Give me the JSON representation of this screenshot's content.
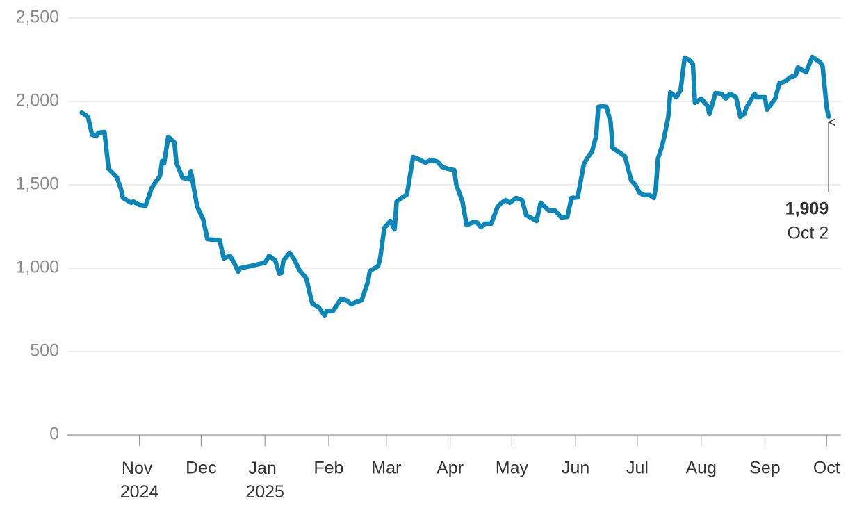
{
  "chart_data": {
    "type": "line",
    "x": [
      "2024-10-04",
      "2024-10-07",
      "2024-10-09",
      "2024-10-11",
      "2024-10-12",
      "2024-10-15",
      "2024-10-17",
      "2024-10-21",
      "2024-10-23",
      "2024-10-24",
      "2024-10-28",
      "2024-10-29",
      "2024-11-01",
      "2024-11-04",
      "2024-11-07",
      "2024-11-11",
      "2024-11-12",
      "2024-11-13",
      "2024-11-15",
      "2024-11-18",
      "2024-11-19",
      "2024-11-22",
      "2024-11-25",
      "2024-11-26",
      "2024-11-29",
      "2024-12-02",
      "2024-12-04",
      "2024-12-07",
      "2024-12-10",
      "2024-12-12",
      "2024-12-15",
      "2024-12-17",
      "2024-12-19",
      "2024-12-20",
      "2024-12-25",
      "2025-01-01",
      "2025-01-03",
      "2025-01-06",
      "2025-01-08",
      "2025-01-09",
      "2025-01-10",
      "2025-01-13",
      "2025-01-15",
      "2025-01-18",
      "2025-01-21",
      "2025-01-24",
      "2025-01-27",
      "2025-01-30",
      "2025-01-31",
      "2025-02-03",
      "2025-02-07",
      "2025-02-10",
      "2025-02-12",
      "2025-02-14",
      "2025-02-17",
      "2025-02-20",
      "2025-02-21",
      "2025-02-25",
      "2025-02-26",
      "2025-02-28",
      "2025-03-03",
      "2025-03-05",
      "2025-03-06",
      "2025-03-11",
      "2025-03-14",
      "2025-03-16",
      "2025-03-20",
      "2025-03-23",
      "2025-03-26",
      "2025-03-28",
      "2025-03-31",
      "2025-04-03",
      "2025-04-04",
      "2025-04-07",
      "2025-04-09",
      "2025-04-12",
      "2025-04-14",
      "2025-04-16",
      "2025-04-18",
      "2025-04-21",
      "2025-04-24",
      "2025-04-26",
      "2025-04-28",
      "2025-04-30",
      "2025-05-03",
      "2025-05-06",
      "2025-05-08",
      "2025-05-10",
      "2025-05-13",
      "2025-05-15",
      "2025-05-19",
      "2025-05-22",
      "2025-05-25",
      "2025-05-28",
      "2025-05-30",
      "2025-06-02",
      "2025-06-03",
      "2025-06-05",
      "2025-06-07",
      "2025-06-09",
      "2025-06-11",
      "2025-06-12",
      "2025-06-14",
      "2025-06-16",
      "2025-06-18",
      "2025-06-19",
      "2025-06-23",
      "2025-06-25",
      "2025-06-28",
      "2025-06-30",
      "2025-07-02",
      "2025-07-04",
      "2025-07-07",
      "2025-07-09",
      "2025-07-10",
      "2025-07-11",
      "2025-07-13",
      "2025-07-14",
      "2025-07-16",
      "2025-07-17",
      "2025-07-20",
      "2025-07-22",
      "2025-07-24",
      "2025-07-26",
      "2025-07-28",
      "2025-07-29",
      "2025-08-01",
      "2025-08-04",
      "2025-08-05",
      "2025-08-08",
      "2025-08-11",
      "2025-08-13",
      "2025-08-15",
      "2025-08-18",
      "2025-08-20",
      "2025-08-22",
      "2025-08-23",
      "2025-08-27",
      "2025-08-28",
      "2025-08-30",
      "2025-09-01",
      "2025-09-02",
      "2025-09-06",
      "2025-09-08",
      "2025-09-11",
      "2025-09-13",
      "2025-09-16",
      "2025-09-17",
      "2025-09-21",
      "2025-09-24",
      "2025-09-28",
      "2025-09-29",
      "2025-10-01",
      "2025-10-02"
    ],
    "series": [
      {
        "color": "#0b86b8",
        "values": [
          1933,
          1908,
          1800,
          1792,
          1812,
          1817,
          1596,
          1546,
          1475,
          1421,
          1392,
          1400,
          1379,
          1375,
          1483,
          1554,
          1642,
          1629,
          1788,
          1754,
          1629,
          1542,
          1533,
          1583,
          1371,
          1292,
          1175,
          1171,
          1167,
          1058,
          1075,
          1033,
          979,
          1000,
          1013,
          1033,
          1075,
          1046,
          967,
          971,
          1046,
          1092,
          1058,
          983,
          942,
          788,
          767,
          717,
          742,
          742,
          817,
          804,
          783,
          796,
          808,
          917,
          983,
          1013,
          1058,
          1242,
          1283,
          1233,
          1400,
          1442,
          1667,
          1658,
          1633,
          1650,
          1638,
          1608,
          1596,
          1588,
          1500,
          1400,
          1258,
          1275,
          1275,
          1246,
          1267,
          1267,
          1367,
          1392,
          1408,
          1392,
          1421,
          1408,
          1317,
          1304,
          1283,
          1392,
          1346,
          1346,
          1304,
          1308,
          1421,
          1425,
          1492,
          1625,
          1667,
          1700,
          1792,
          1967,
          1971,
          1967,
          1875,
          1721,
          1688,
          1671,
          1525,
          1500,
          1454,
          1438,
          1438,
          1421,
          1483,
          1658,
          1733,
          1783,
          1908,
          2054,
          2025,
          2067,
          2263,
          2250,
          2225,
          1992,
          2017,
          1975,
          1925,
          2050,
          2046,
          2017,
          2046,
          2025,
          1908,
          1925,
          1963,
          2046,
          2025,
          2025,
          2025,
          1950,
          2017,
          2108,
          2121,
          2142,
          2158,
          2204,
          2175,
          2267,
          2233,
          2213,
          1963,
          1909
        ]
      }
    ],
    "xlim": [
      "2024-09-27",
      "2025-10-08"
    ],
    "xticks": [
      {
        "value": "2024-11-01",
        "label": "Nov 2024"
      },
      {
        "value": "2024-12-01",
        "label": "Dec"
      },
      {
        "value": "2025-01-01",
        "label": "Jan 2025"
      },
      {
        "value": "2025-02-01",
        "label": "Feb"
      },
      {
        "value": "2025-03-01",
        "label": "Mar"
      },
      {
        "value": "2025-04-01",
        "label": "Apr"
      },
      {
        "value": "2025-05-01",
        "label": "May"
      },
      {
        "value": "2025-06-01",
        "label": "Jun"
      },
      {
        "value": "2025-07-01",
        "label": "Jul"
      },
      {
        "value": "2025-08-01",
        "label": "Aug"
      },
      {
        "value": "2025-09-01",
        "label": "Sep"
      },
      {
        "value": "2025-10-01",
        "label": "Oct"
      }
    ],
    "ylim": [
      0,
      2500
    ],
    "yticks": [
      0,
      500,
      {
        "value": 1000,
        "label": "1,000"
      },
      {
        "value": 1500,
        "label": "1,500"
      },
      {
        "value": 2000,
        "label": "2,000"
      },
      {
        "value": 2500,
        "label": "2,500"
      }
    ],
    "grid": true,
    "annotation": {
      "value_label": "1,909",
      "date_label": "Oct 2"
    }
  }
}
